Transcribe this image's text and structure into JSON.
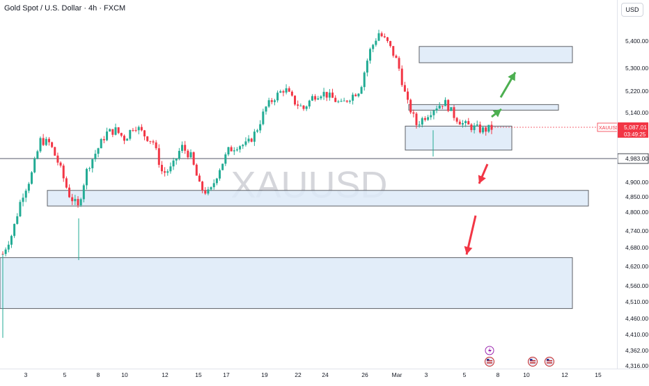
{
  "header": {
    "title": "Gold Spot / U.S. Dollar · 4h · FXCM",
    "currency_button": "USD"
  },
  "watermark": "XAUUSD",
  "colors": {
    "up": "#22ab94",
    "down": "#f23645",
    "zone_fill": "#ddeaf8",
    "zone_stroke": "#5d6066",
    "price_label": "#f23645",
    "horizontal_line": "#787b86",
    "green_arrow": "#4caf50",
    "red_arrow": "#f23645"
  },
  "chart_data": {
    "type": "candlestick",
    "title": "Gold Spot / U.S. Dollar · 4h · FXCM",
    "ylim": [
      4316,
      5480
    ],
    "y_ticks": [
      "5,400.00",
      "5,300.00",
      "5,220.00",
      "5,140.00",
      "4,900.00",
      "4,850.00",
      "4,800.00",
      "4,740.00",
      "4,680.00",
      "4,620.00",
      "4,560.00",
      "4,510.00",
      "4,460.00",
      "4,410.00",
      "4,362.00",
      "4,316.00"
    ],
    "x_ticks": [
      "3",
      "5",
      "8",
      "10",
      "12",
      "15",
      "17",
      "19",
      "22",
      "24",
      "26",
      "Mar",
      "3",
      "5",
      "8",
      "10",
      "12",
      "15"
    ],
    "last_price": {
      "symbol": "XAUUSD",
      "price": "5,087.01",
      "countdown": "03:49:25"
    },
    "horizontal_line": {
      "price": "4,983.00"
    },
    "zones": [
      {
        "top": 5380,
        "bottom": 5320
      },
      {
        "top": 5170,
        "bottom": 5155
      },
      {
        "top": 5094,
        "bottom": 5012
      },
      {
        "top": 4872,
        "bottom": 4820
      },
      {
        "top": 4648,
        "bottom": 4490
      }
    ],
    "close_path": [
      4660,
      4730,
      4850,
      4920,
      5045,
      5035,
      4960,
      4860,
      4815,
      4950,
      5010,
      5070,
      5080,
      5050,
      5100,
      5065,
      5040,
      4930,
      4950,
      5025,
      4990,
      4880,
      4860,
      4945,
      5010,
      5030,
      5030,
      5080,
      5160,
      5200,
      5230,
      5180,
      5155,
      5200,
      5215,
      5195,
      5170,
      5200,
      5225,
      5360,
      5430,
      5390,
      5320,
      5180,
      5100,
      5130,
      5160,
      5180,
      5130,
      5100,
      5090,
      5080,
      5087
    ],
    "arrows": [
      {
        "dir": "up",
        "color": "green"
      },
      {
        "dir": "up",
        "color": "green"
      },
      {
        "dir": "down",
        "color": "red"
      },
      {
        "dir": "down",
        "color": "red"
      }
    ]
  }
}
